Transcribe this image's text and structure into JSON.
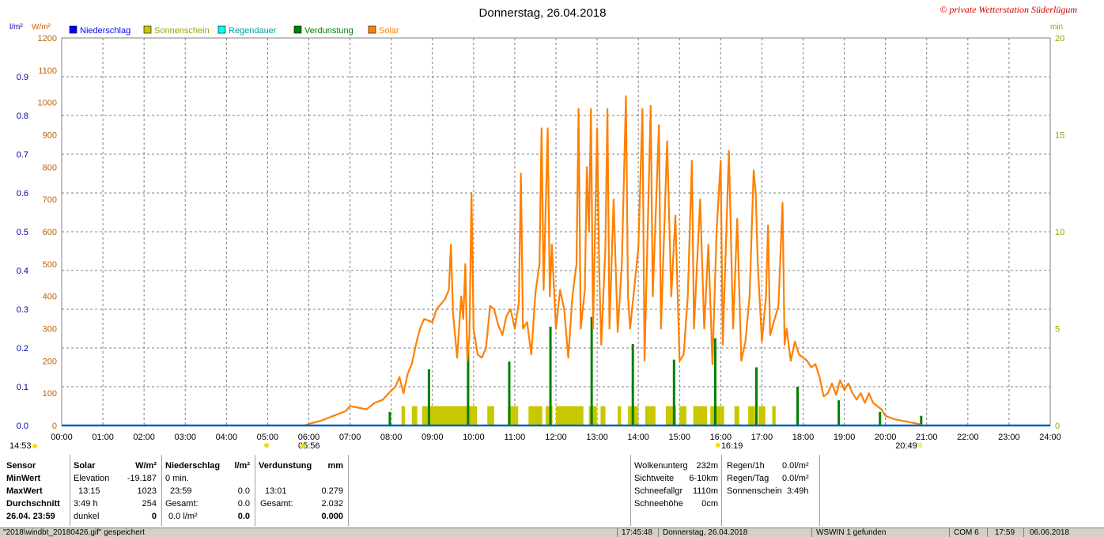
{
  "header": {
    "title": "Donnerstag, 26.04.2018",
    "copyright": "© private Wetterstation Süderlügum"
  },
  "chart_data": {
    "type": "line",
    "title": "Donnerstag, 26.04.2018",
    "left_axis_1": {
      "unit": "l/m²",
      "min": 0,
      "max": 1.0,
      "ticks": [
        "0.0",
        "0.1",
        "0.2",
        "0.3",
        "0.4",
        "0.5",
        "0.6",
        "0.7",
        "0.8",
        "0.9"
      ]
    },
    "left_axis_2": {
      "unit": "W/m²",
      "min": 0,
      "max": 1200,
      "ticks": [
        "0",
        "100",
        "200",
        "300",
        "400",
        "500",
        "600",
        "700",
        "800",
        "900",
        "1000",
        "1100",
        "1200"
      ]
    },
    "right_axis": {
      "unit": "min",
      "min": 0,
      "max": 20,
      "ticks": [
        "0",
        "5",
        "10",
        "15",
        "20"
      ]
    },
    "x_axis": {
      "min": 0,
      "max": 24,
      "ticks": [
        "00:00",
        "01:00",
        "02:00",
        "03:00",
        "04:00",
        "05:00",
        "06:00",
        "07:00",
        "08:00",
        "09:00",
        "10:00",
        "11:00",
        "12:00",
        "13:00",
        "14:00",
        "15:00",
        "16:00",
        "17:00",
        "18:00",
        "19:00",
        "20:00",
        "21:00",
        "22:00",
        "23:00",
        "24:00"
      ]
    },
    "legend": [
      {
        "name": "Niederschlag",
        "color": "#0000ff"
      },
      {
        "name": "Sonnenschein",
        "color": "#c8c800"
      },
      {
        "name": "Regendauer",
        "color": "#00ffff"
      },
      {
        "name": "Verdunstung",
        "color": "#008000"
      },
      {
        "name": "Solar",
        "color": "#ff8000"
      }
    ],
    "markers": {
      "left_time": "14:53",
      "sunrise": "05:56",
      "noon": "16:19",
      "sunset": "20:49"
    },
    "solar_series": {
      "name": "Solar",
      "color": "#ff8000",
      "points": [
        [
          5.9,
          0
        ],
        [
          6.0,
          5
        ],
        [
          6.3,
          15
        ],
        [
          6.6,
          30
        ],
        [
          6.9,
          45
        ],
        [
          7.0,
          60
        ],
        [
          7.2,
          55
        ],
        [
          7.4,
          50
        ],
        [
          7.6,
          70
        ],
        [
          7.8,
          80
        ],
        [
          7.9,
          95
        ],
        [
          8.1,
          120
        ],
        [
          8.2,
          150
        ],
        [
          8.3,
          100
        ],
        [
          8.4,
          160
        ],
        [
          8.5,
          190
        ],
        [
          8.6,
          250
        ],
        [
          8.7,
          300
        ],
        [
          8.8,
          330
        ],
        [
          9.0,
          320
        ],
        [
          9.1,
          360
        ],
        [
          9.3,
          390
        ],
        [
          9.4,
          420
        ],
        [
          9.45,
          560
        ],
        [
          9.5,
          350
        ],
        [
          9.6,
          210
        ],
        [
          9.7,
          400
        ],
        [
          9.75,
          330
        ],
        [
          9.8,
          500
        ],
        [
          9.85,
          200
        ],
        [
          9.9,
          280
        ],
        [
          9.95,
          720
        ],
        [
          10.0,
          300
        ],
        [
          10.1,
          220
        ],
        [
          10.2,
          210
        ],
        [
          10.3,
          240
        ],
        [
          10.4,
          370
        ],
        [
          10.5,
          360
        ],
        [
          10.6,
          310
        ],
        [
          10.7,
          280
        ],
        [
          10.8,
          340
        ],
        [
          10.9,
          360
        ],
        [
          11.0,
          300
        ],
        [
          11.1,
          380
        ],
        [
          11.15,
          780
        ],
        [
          11.2,
          300
        ],
        [
          11.3,
          320
        ],
        [
          11.4,
          220
        ],
        [
          11.5,
          410
        ],
        [
          11.6,
          500
        ],
        [
          11.65,
          920
        ],
        [
          11.7,
          420
        ],
        [
          11.8,
          920
        ],
        [
          11.85,
          400
        ],
        [
          11.9,
          560
        ],
        [
          12.0,
          300
        ],
        [
          12.1,
          420
        ],
        [
          12.2,
          360
        ],
        [
          12.3,
          210
        ],
        [
          12.4,
          400
        ],
        [
          12.5,
          500
        ],
        [
          12.55,
          980
        ],
        [
          12.6,
          300
        ],
        [
          12.7,
          420
        ],
        [
          12.75,
          800
        ],
        [
          12.8,
          600
        ],
        [
          12.85,
          980
        ],
        [
          12.9,
          300
        ],
        [
          13.0,
          920
        ],
        [
          13.05,
          480
        ],
        [
          13.1,
          250
        ],
        [
          13.2,
          550
        ],
        [
          13.25,
          980
        ],
        [
          13.3,
          300
        ],
        [
          13.4,
          700
        ],
        [
          13.5,
          290
        ],
        [
          13.6,
          500
        ],
        [
          13.7,
          1020
        ],
        [
          13.75,
          400
        ],
        [
          13.8,
          300
        ],
        [
          14.0,
          550
        ],
        [
          14.1,
          980
        ],
        [
          14.15,
          200
        ],
        [
          14.3,
          990
        ],
        [
          14.35,
          400
        ],
        [
          14.5,
          930
        ],
        [
          14.55,
          300
        ],
        [
          14.7,
          880
        ],
        [
          14.8,
          400
        ],
        [
          14.9,
          650
        ],
        [
          15.0,
          200
        ],
        [
          15.1,
          220
        ],
        [
          15.2,
          400
        ],
        [
          15.3,
          820
        ],
        [
          15.35,
          300
        ],
        [
          15.5,
          700
        ],
        [
          15.6,
          300
        ],
        [
          15.7,
          560
        ],
        [
          15.8,
          190
        ],
        [
          15.9,
          600
        ],
        [
          16.0,
          820
        ],
        [
          16.05,
          250
        ],
        [
          16.2,
          850
        ],
        [
          16.3,
          300
        ],
        [
          16.4,
          640
        ],
        [
          16.5,
          200
        ],
        [
          16.6,
          260
        ],
        [
          16.7,
          400
        ],
        [
          16.8,
          790
        ],
        [
          16.85,
          720
        ],
        [
          16.9,
          500
        ],
        [
          17.0,
          260
        ],
        [
          17.1,
          400
        ],
        [
          17.15,
          620
        ],
        [
          17.2,
          280
        ],
        [
          17.4,
          370
        ],
        [
          17.5,
          690
        ],
        [
          17.55,
          250
        ],
        [
          17.6,
          300
        ],
        [
          17.7,
          200
        ],
        [
          17.8,
          260
        ],
        [
          17.9,
          220
        ],
        [
          18.0,
          210
        ],
        [
          18.1,
          200
        ],
        [
          18.2,
          180
        ],
        [
          18.3,
          190
        ],
        [
          18.4,
          150
        ],
        [
          18.5,
          90
        ],
        [
          18.6,
          100
        ],
        [
          18.7,
          130
        ],
        [
          18.8,
          95
        ],
        [
          18.9,
          140
        ],
        [
          19.0,
          110
        ],
        [
          19.1,
          130
        ],
        [
          19.2,
          100
        ],
        [
          19.3,
          80
        ],
        [
          19.4,
          100
        ],
        [
          19.5,
          70
        ],
        [
          19.6,
          100
        ],
        [
          19.7,
          70
        ],
        [
          19.8,
          60
        ],
        [
          19.9,
          50
        ],
        [
          20.0,
          30
        ],
        [
          20.2,
          20
        ],
        [
          20.4,
          15
        ],
        [
          20.6,
          10
        ],
        [
          20.8,
          5
        ],
        [
          20.9,
          0
        ]
      ]
    },
    "sunshine_bars": {
      "name": "Sonnenschein",
      "color": "#c8c800",
      "value_min": 1,
      "intervals": [
        [
          "08:15",
          "08:20"
        ],
        [
          "08:30",
          "08:38"
        ],
        [
          "08:45",
          "10:05"
        ],
        [
          "10:20",
          "10:30"
        ],
        [
          "10:50",
          "11:05"
        ],
        [
          "11:20",
          "11:40"
        ],
        [
          "11:45",
          "11:55"
        ],
        [
          "12:00",
          "12:40"
        ],
        [
          "12:48",
          "13:00"
        ],
        [
          "13:05",
          "13:12"
        ],
        [
          "13:30",
          "13:35"
        ],
        [
          "13:45",
          "14:00"
        ],
        [
          "14:10",
          "14:25"
        ],
        [
          "14:40",
          "14:55"
        ],
        [
          "15:00",
          "15:10"
        ],
        [
          "15:20",
          "15:40"
        ],
        [
          "15:45",
          "16:05"
        ],
        [
          "16:20",
          "16:27"
        ],
        [
          "16:40",
          "16:50"
        ],
        [
          "16:55",
          "17:05"
        ],
        [
          "17:15",
          "17:20"
        ]
      ]
    },
    "evaporation_bars": {
      "name": "Verdunstung",
      "color": "#008000",
      "bars": [
        [
          "07:58",
          0.035
        ],
        [
          "08:55",
          0.145
        ],
        [
          "09:52",
          0.205
        ],
        [
          "10:52",
          0.165
        ],
        [
          "11:52",
          0.255
        ],
        [
          "12:52",
          0.28
        ],
        [
          "13:52",
          0.21
        ],
        [
          "14:52",
          0.17
        ],
        [
          "15:52",
          0.225
        ],
        [
          "16:52",
          0.15
        ],
        [
          "17:52",
          0.1
        ],
        [
          "18:52",
          0.065
        ],
        [
          "19:52",
          0.035
        ],
        [
          "20:52",
          0.025
        ]
      ]
    },
    "precipitation": {
      "name": "Niederschlag",
      "color": "#0000ff",
      "value": 0
    }
  },
  "stats": {
    "col_sensor": {
      "header": "Sensor",
      "rows": [
        "MinWert",
        "MaxWert",
        "Durchschnitt",
        "26.04.  23:59"
      ]
    },
    "col_solar": {
      "header": "Solar",
      "unit": "W/m²",
      "rows": [
        [
          "Elevation",
          "-19.187"
        ],
        [
          "13:15",
          "1023"
        ],
        [
          "3:49 h",
          "254"
        ],
        [
          "dunkel",
          "0"
        ]
      ]
    },
    "col_rain": {
      "header": "Niederschlag",
      "unit": "l/m²",
      "rows": [
        [
          "0 min.",
          ""
        ],
        [
          "23:59",
          "0.0"
        ],
        [
          "Gesamt:",
          "0.0"
        ],
        [
          "0.0 l/m²",
          "0.0"
        ]
      ]
    },
    "col_evap": {
      "header": "Verdunstung",
      "unit": "mm",
      "rows": [
        [
          "",
          ""
        ],
        [
          "13:01",
          "0.279"
        ],
        [
          "Gesamt:",
          "2.032"
        ],
        [
          "",
          "0.000"
        ]
      ]
    },
    "col_cloud": {
      "rows": [
        [
          "Wolkenunterg",
          "232m"
        ],
        [
          "Sichtweite",
          "6-10km"
        ],
        [
          "Schneefallgr",
          "1110m"
        ],
        [
          "Schneehöhe",
          "0cm"
        ]
      ]
    },
    "col_rainrate": {
      "rows": [
        [
          "Regen/1h",
          "0.0l/m²"
        ],
        [
          "Regen/Tag",
          "0.0l/m²"
        ],
        [
          "Sonnenschein",
          "3:49h"
        ]
      ]
    }
  },
  "statusbar": {
    "file": "\"2018\\windbt_20180426.gif\" gespeichert",
    "time1": "17:45:48",
    "date": "Donnerstag, 26.04.2018",
    "device": "WSWIN 1 gefunden",
    "port": "COM 6",
    "time2": "17:59",
    "date2": "06.06.2018"
  }
}
